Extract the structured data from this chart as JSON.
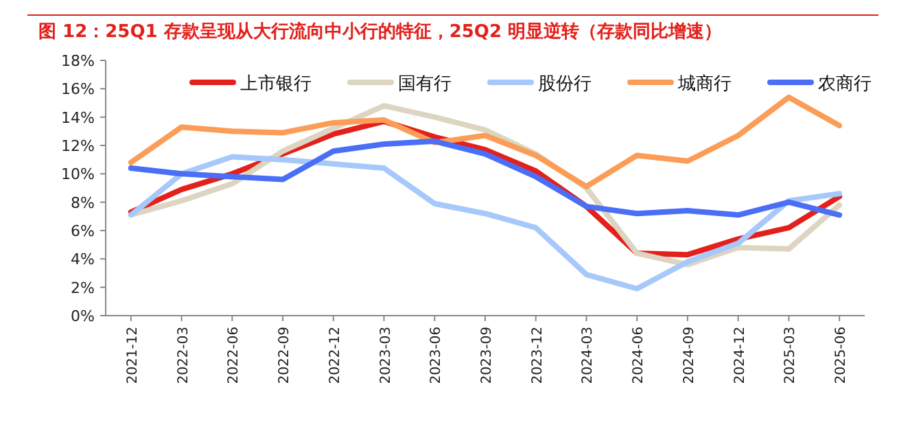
{
  "chart_data": {
    "type": "line",
    "title": "图 12：25Q1 存款呈现从大行流向中小行的特征，25Q2 明显逆转（存款同比增速）",
    "categories": [
      "2021-12",
      "2022-03",
      "2022-06",
      "2022-09",
      "2022-12",
      "2023-03",
      "2023-06",
      "2023-09",
      "2023-12",
      "2024-03",
      "2024-06",
      "2024-09",
      "2024-12",
      "2025-03",
      "2025-06"
    ],
    "series": [
      {
        "name": "上市银行",
        "color": "#e3201b",
        "values": [
          7.3,
          8.9,
          10.0,
          11.4,
          12.8,
          13.7,
          12.6,
          11.7,
          10.2,
          7.7,
          4.4,
          4.3,
          5.4,
          6.2,
          8.4
        ]
      },
      {
        "name": "国有行",
        "color": "#ddd5c2",
        "values": [
          7.1,
          8.1,
          9.3,
          11.6,
          13.2,
          14.8,
          14.0,
          13.1,
          11.4,
          9.0,
          4.4,
          3.6,
          4.8,
          4.7,
          7.8
        ]
      },
      {
        "name": "股份行",
        "color": "#a6c8fb",
        "values": [
          7.1,
          10.0,
          11.2,
          11.0,
          10.7,
          10.4,
          7.9,
          7.2,
          6.2,
          2.9,
          1.9,
          3.8,
          5.1,
          8.1,
          8.6
        ]
      },
      {
        "name": "城商行",
        "color": "#fb9d57",
        "values": [
          10.8,
          13.3,
          13.0,
          12.9,
          13.6,
          13.8,
          12.2,
          12.7,
          11.3,
          9.1,
          11.3,
          10.9,
          12.7,
          15.4,
          13.4
        ]
      },
      {
        "name": "农商行",
        "color": "#4a6ef5",
        "values": [
          10.4,
          10.0,
          9.8,
          9.6,
          11.6,
          12.1,
          12.3,
          11.4,
          9.8,
          7.7,
          7.2,
          7.4,
          7.1,
          8.0,
          7.1
        ]
      }
    ],
    "ylim": [
      0,
      18
    ],
    "yticks": [
      {
        "value": 0,
        "label": "0%"
      },
      {
        "value": 2,
        "label": "2%"
      },
      {
        "value": 4,
        "label": "4%"
      },
      {
        "value": 6,
        "label": "6%"
      },
      {
        "value": 8,
        "label": "8%"
      },
      {
        "value": 10,
        "label": "10%"
      },
      {
        "value": 12,
        "label": "12%"
      },
      {
        "value": 14,
        "label": "14%"
      },
      {
        "value": 16,
        "label": "16%"
      },
      {
        "value": 18,
        "label": "18%"
      }
    ],
    "legend": "top"
  }
}
